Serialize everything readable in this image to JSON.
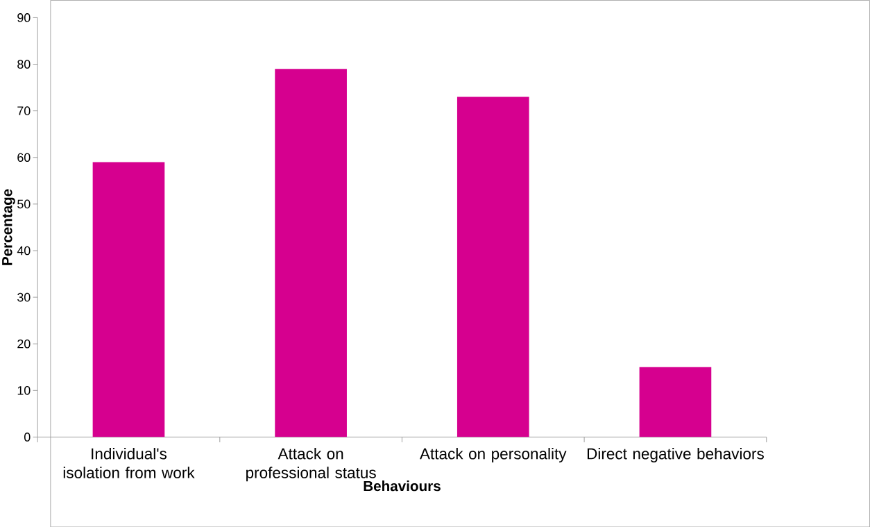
{
  "chart_data": {
    "type": "bar",
    "xlabel": "Behaviours",
    "ylabel": "Percentage",
    "categories": [
      "Individual's isolation from work",
      "Attack on professional status",
      "Attack on personality",
      "Direct negative behaviors"
    ],
    "values": [
      59,
      79,
      73,
      15
    ],
    "color": "#d6008f",
    "ylim": [
      0,
      90
    ],
    "yticks": [
      0,
      10,
      20,
      30,
      40,
      50,
      60,
      70,
      80,
      90
    ]
  }
}
